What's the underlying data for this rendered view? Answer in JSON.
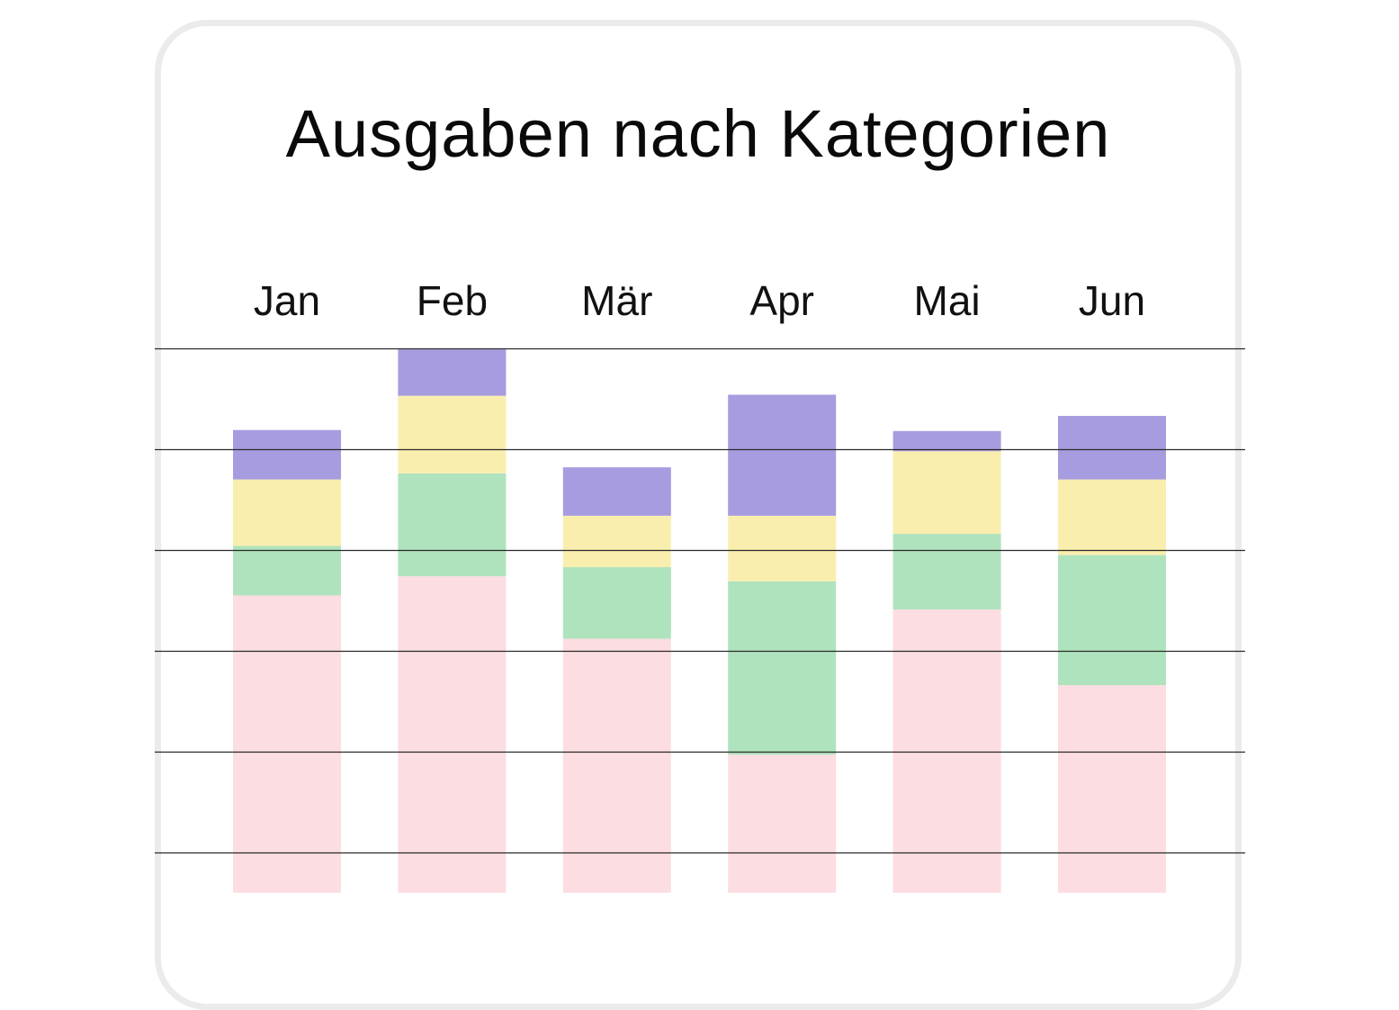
{
  "chart_data": {
    "type": "bar",
    "stacked": true,
    "title": "Ausgaben nach Kategorien",
    "categories": [
      "Jan",
      "Feb",
      "Mär",
      "Apr",
      "Mai",
      "Jun"
    ],
    "category_axis_position": "top",
    "grid": true,
    "legend": "none",
    "series": [
      {
        "color": "#fcdde1",
        "values": [
          295,
          314,
          252,
          137,
          281,
          206
        ]
      },
      {
        "color": "#afe3bd",
        "values": [
          49,
          102,
          71,
          172,
          75,
          129
        ]
      },
      {
        "color": "#f9eeae",
        "values": [
          66,
          77,
          51,
          65,
          82,
          75
        ]
      },
      {
        "color": "#a79ce0",
        "values": [
          49,
          46,
          48,
          120,
          20,
          63
        ]
      }
    ],
    "ylim": [
      0,
      540
    ]
  }
}
